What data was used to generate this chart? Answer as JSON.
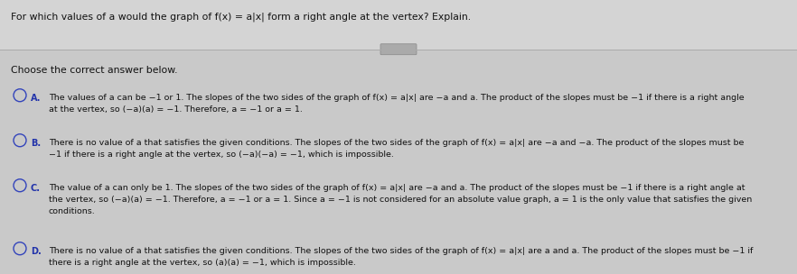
{
  "bg_color": "#e8e8e8",
  "top_section_bg": "#d0d0d0",
  "bottom_section_bg": "#c8c8c8",
  "top_question": "For which values of a would the graph of f(x) = a|x| form a right angle at the vertex? Explain.",
  "divider_color": "#aaaaaa",
  "choose_text": "Choose the correct answer below.",
  "options": [
    {
      "label": "A.",
      "lines": [
        "The values of a can be −1 or 1. The slopes of the two sides of the graph of f(x) = a|x| are −a and a. The product of the slopes must be −1 if there is a right angle",
        "at the vertex, so (−a)(a) = −1. Therefore, a = −1 or a = 1."
      ]
    },
    {
      "label": "B.",
      "lines": [
        "There is no value of a that satisfies the given conditions. The slopes of the two sides of the graph of f(x) = a|x| are −a and −a. The product of the slopes must be",
        "−1 if there is a right angle at the vertex, so (−a)(−a) = −1, which is impossible."
      ]
    },
    {
      "label": "C.",
      "lines": [
        "The value of a can only be 1. The slopes of the two sides of the graph of f(x) = a|x| are −a and a. The product of the slopes must be −1 if there is a right angle at",
        "the vertex, so (−a)(a) = −1. Therefore, a = −1 or a = 1. Since a = −1 is not considered for an absolute value graph, a = 1 is the only value that satisfies the given",
        "conditions."
      ]
    },
    {
      "label": "D.",
      "lines": [
        "There is no value of a that satisfies the given conditions. The slopes of the two sides of the graph of f(x) = a|x| are a and a. The product of the slopes must be −1 if",
        "there is a right angle at the vertex, so (a)(a) = −1, which is impossible."
      ]
    }
  ],
  "text_color": "#111111",
  "question_color": "#111111",
  "label_color": "#2233aa",
  "circle_color": "#3344bb",
  "font_size_question": 7.8,
  "font_size_body": 6.8,
  "font_size_label": 7.0,
  "button_color": "#aaaaaa",
  "button_edge": "#888888"
}
